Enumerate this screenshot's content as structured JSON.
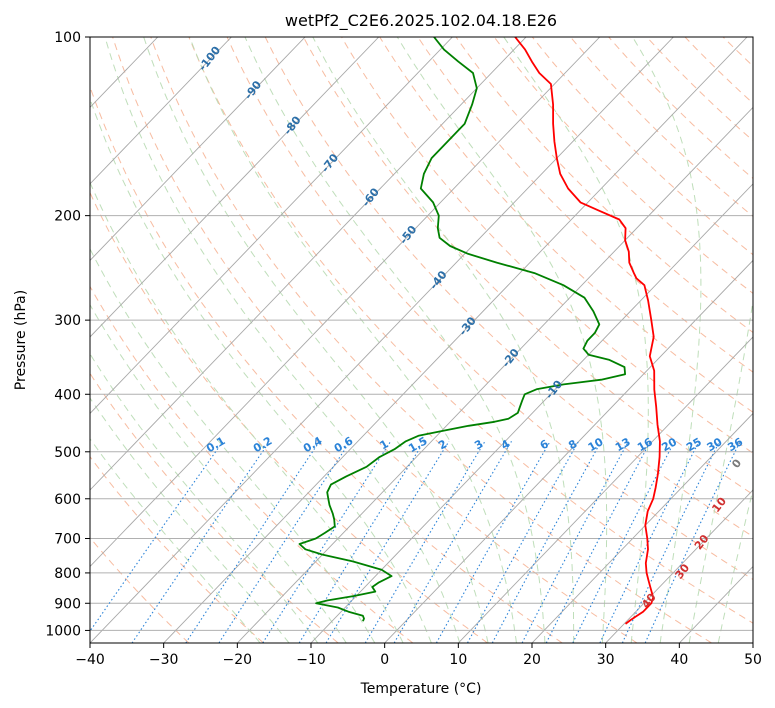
{
  "chart_data": {
    "type": "line",
    "subtype": "skew-T log-P diagram",
    "title": "wetPf2_C2E6.2025.102.04.18.E26",
    "xlabel": "Temperature (°C)",
    "ylabel": "Pressure (hPa)",
    "xlim": [
      -40,
      50
    ],
    "ylim": [
      1050,
      100
    ],
    "y_scale": "log",
    "x_ticks": [
      "−40",
      "−30",
      "−20",
      "−10",
      "0",
      "10",
      "20",
      "30",
      "40",
      "50"
    ],
    "y_ticks": [
      "100",
      "200",
      "300",
      "400",
      "500",
      "600",
      "700",
      "800",
      "900",
      "1000"
    ],
    "grid": true,
    "series": [
      {
        "role": "temperature",
        "color": "#ff0000",
        "points": [
          [
            30.2,
            975
          ],
          [
            30.4,
            960
          ],
          [
            31.0,
            930
          ],
          [
            31.0,
            900
          ],
          [
            30.5,
            880
          ],
          [
            29.0,
            850
          ],
          [
            27.7,
            825
          ],
          [
            26.4,
            800
          ],
          [
            25.0,
            770
          ],
          [
            23.5,
            730
          ],
          [
            22.0,
            700
          ],
          [
            20.0,
            665
          ],
          [
            18.5,
            630
          ],
          [
            17.6,
            600
          ],
          [
            16.5,
            575
          ],
          [
            15.0,
            545
          ],
          [
            13.0,
            510
          ],
          [
            11.0,
            480
          ],
          [
            8.5,
            450
          ],
          [
            6.0,
            420
          ],
          [
            3.5,
            393
          ],
          [
            1.0,
            365
          ],
          [
            -1.5,
            345
          ],
          [
            -3.5,
            320
          ],
          [
            -6.0,
            300
          ],
          [
            -9.0,
            278
          ],
          [
            -11.5,
            262
          ],
          [
            -13.5,
            255
          ],
          [
            -14.5,
            250
          ],
          [
            -15.5,
            245
          ],
          [
            -16.5,
            240
          ],
          [
            -18.0,
            230
          ],
          [
            -20.0,
            220
          ],
          [
            -21.5,
            210
          ],
          [
            -23.5,
            203
          ],
          [
            -27.5,
            196
          ],
          [
            -31.0,
            190
          ],
          [
            -34.5,
            180
          ],
          [
            -37.5,
            170
          ],
          [
            -40.0,
            160
          ],
          [
            -42.5,
            150
          ],
          [
            -45.0,
            140
          ],
          [
            -47.5,
            130
          ],
          [
            -50.5,
            120
          ],
          [
            -53.5,
            115
          ],
          [
            -56.0,
            110
          ],
          [
            -58.5,
            105
          ],
          [
            -61.5,
            100
          ]
        ]
      },
      {
        "role": "dewpoint",
        "color": "#008000",
        "points": [
          [
            -5.8,
            965
          ],
          [
            -6.0,
            955
          ],
          [
            -6.5,
            945
          ],
          [
            -9.0,
            930
          ],
          [
            -11.0,
            915
          ],
          [
            -14.5,
            900
          ],
          [
            -13.3,
            890
          ],
          [
            -10.3,
            875
          ],
          [
            -8.0,
            860
          ],
          [
            -9.0,
            845
          ],
          [
            -8.7,
            830
          ],
          [
            -7.8,
            810
          ],
          [
            -10.0,
            790
          ],
          [
            -15.0,
            765
          ],
          [
            -20.0,
            745
          ],
          [
            -23.0,
            730
          ],
          [
            -24.5,
            715
          ],
          [
            -23.0,
            700
          ],
          [
            -22.5,
            685
          ],
          [
            -22.0,
            668
          ],
          [
            -23.0,
            650
          ],
          [
            -24.0,
            635
          ],
          [
            -25.5,
            615
          ],
          [
            -26.5,
            600
          ],
          [
            -27.5,
            585
          ],
          [
            -28.0,
            568
          ],
          [
            -27.0,
            550
          ],
          [
            -25.5,
            530
          ],
          [
            -25.0,
            510
          ],
          [
            -24.0,
            495
          ],
          [
            -23.5,
            480
          ],
          [
            -22.5,
            470
          ],
          [
            -19.5,
            460
          ],
          [
            -17.0,
            452
          ],
          [
            -14.0,
            445
          ],
          [
            -12.5,
            440
          ],
          [
            -12.0,
            430
          ],
          [
            -12.5,
            420
          ],
          [
            -13.0,
            410
          ],
          [
            -13.5,
            400
          ],
          [
            -12.5,
            392
          ],
          [
            -9.5,
            385
          ],
          [
            -5.0,
            378
          ],
          [
            -2.5,
            370
          ],
          [
            -3.5,
            360
          ],
          [
            -6.5,
            350
          ],
          [
            -10.0,
            343
          ],
          [
            -11.5,
            335
          ],
          [
            -12.0,
            325
          ],
          [
            -12.0,
            315
          ],
          [
            -12.5,
            305
          ],
          [
            -15.0,
            290
          ],
          [
            -18.0,
            275
          ],
          [
            -22.5,
            262
          ],
          [
            -28.0,
            250
          ],
          [
            -34.5,
            240
          ],
          [
            -39.5,
            232
          ],
          [
            -43.0,
            225
          ],
          [
            -45.5,
            218
          ],
          [
            -47.0,
            210
          ],
          [
            -48.5,
            200
          ],
          [
            -51.0,
            190
          ],
          [
            -54.5,
            180
          ],
          [
            -56.0,
            170
          ],
          [
            -57.0,
            160
          ],
          [
            -57.0,
            150
          ],
          [
            -57.0,
            140
          ],
          [
            -58.5,
            130
          ],
          [
            -60.0,
            122
          ],
          [
            -62.5,
            115
          ],
          [
            -66.0,
            110
          ],
          [
            -69.5,
            105
          ],
          [
            -72.5,
            100
          ]
        ]
      }
    ],
    "dry_adiabat_labels": [
      "-100",
      "-90",
      "-80",
      "-70",
      "-60",
      "-50",
      "-40",
      "-30",
      "-20",
      "-10"
    ],
    "moist_adiabat_labels": [
      "0",
      "10",
      "20",
      "30",
      "40"
    ],
    "mixing_ratio_labels": [
      "0.1",
      "0.2",
      "0.4",
      "0.6",
      "1",
      "1.5",
      "2",
      "3",
      "4",
      "6",
      "8",
      "10",
      "13",
      "16",
      "20",
      "25",
      "30",
      "36"
    ]
  }
}
